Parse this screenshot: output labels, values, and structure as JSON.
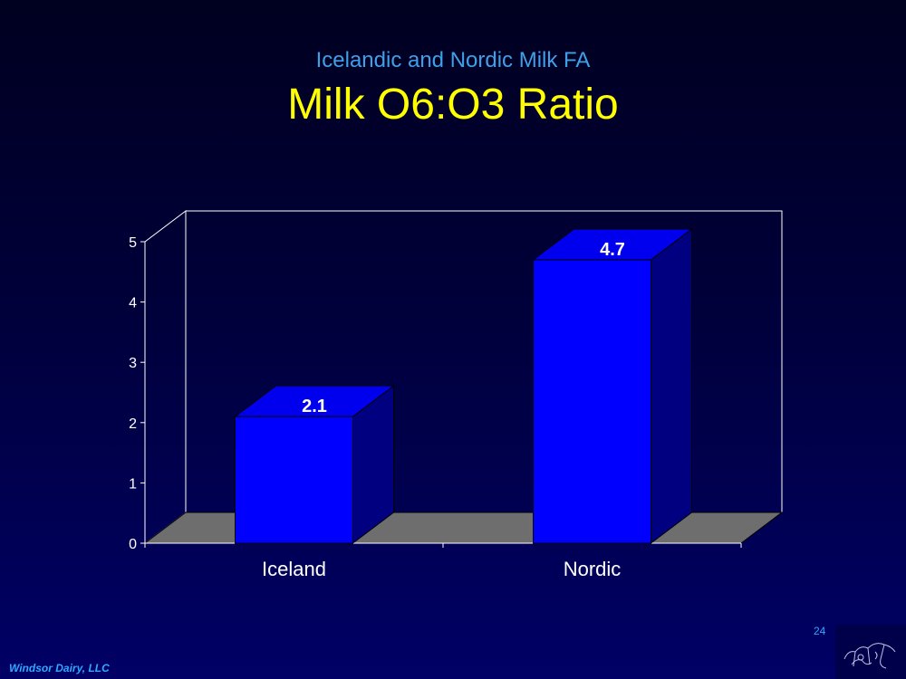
{
  "slide": {
    "subtitle": "Icelandic and Nordic Milk FA",
    "title": "Milk O6:O3 Ratio",
    "footer": "Windsor Dairy, LLC",
    "page_number": "24"
  },
  "colors": {
    "bar_front": "#0000ff",
    "bar_side": "#000080",
    "bar_top": "#0000ee",
    "floor": "#6e6e6e",
    "subtitle": "#3fa0e8",
    "title": "#ffff00",
    "footer": "#2fa8ff"
  },
  "logo_icon": "windsor-dairy-logo-icon",
  "chart_data": {
    "type": "bar",
    "categories": [
      "Iceland",
      "Nordic"
    ],
    "values": [
      2.1,
      4.7
    ],
    "value_labels": [
      "2.1",
      "4.7"
    ],
    "title": "",
    "xlabel": "",
    "ylabel": "",
    "ylim": [
      0,
      5
    ],
    "yticks": [
      "0",
      "1",
      "2",
      "3",
      "4",
      "5"
    ],
    "grid": false,
    "legend": "none",
    "style": "3d"
  }
}
